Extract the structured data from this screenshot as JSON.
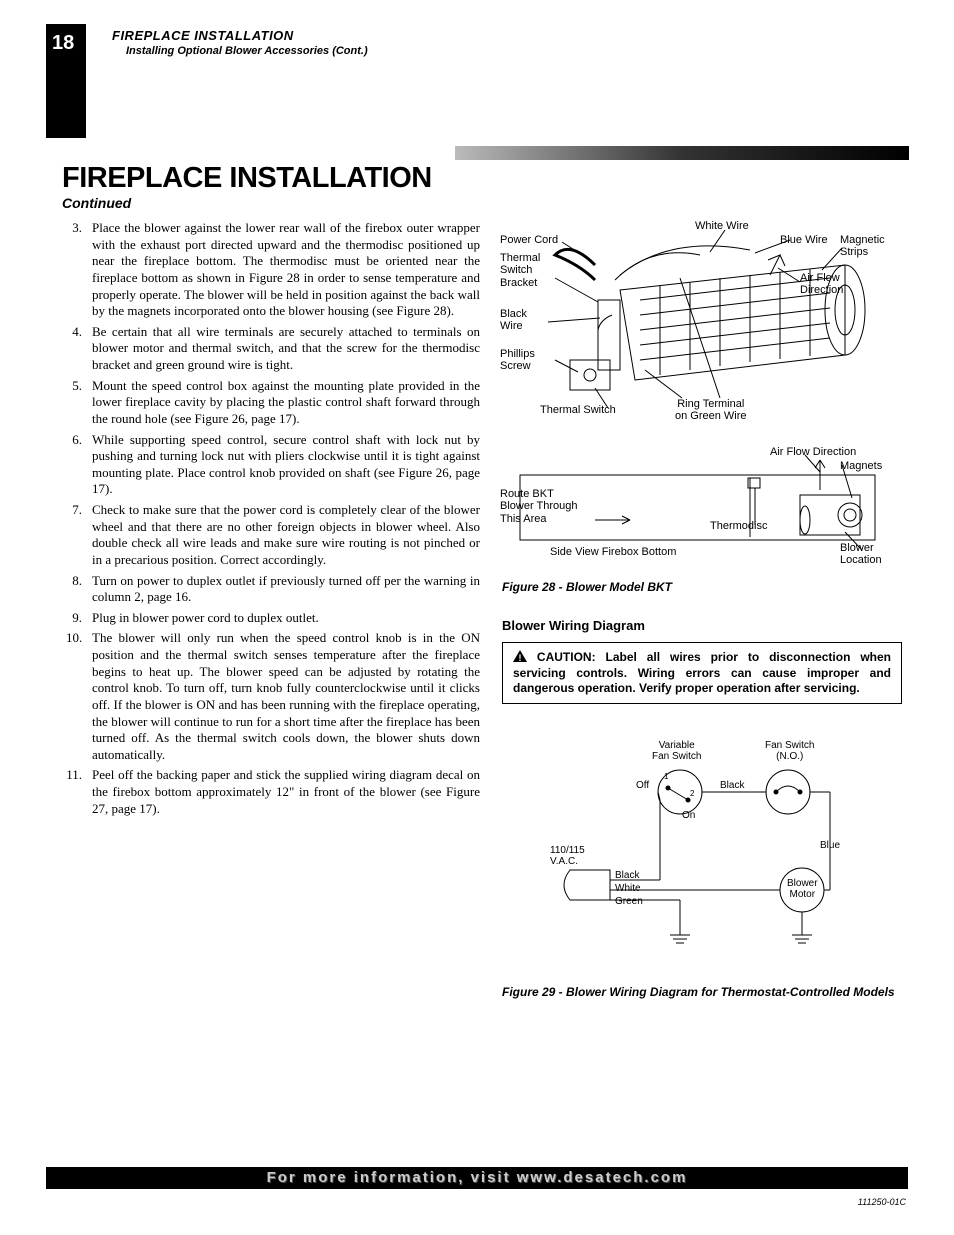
{
  "page_number": "18",
  "header": {
    "line1": "FIREPLACE INSTALLATION",
    "line2": "Installing Optional Blower Accessories (Cont.)"
  },
  "title": "FIREPLACE INSTALLATION",
  "subtitle": "Continued",
  "steps": [
    {
      "n": "3.",
      "text": "Place the blower against the lower rear wall of the firebox outer wrapper with the exhaust port directed upward and the thermodisc positioned up near the fireplace bottom. The thermodisc must be oriented near the fireplace bottom as shown in Figure 28 in order to sense temperature and properly operate. The blower will be held in position against the back wall by the magnets incorporated onto the blower housing (see Figure 28)."
    },
    {
      "n": "4.",
      "text": "Be certain that all wire terminals are securely attached to terminals on blower motor and thermal switch, and that the screw for the thermodisc bracket and green ground wire is tight."
    },
    {
      "n": "5.",
      "text": "Mount the speed control box against the mounting plate provided in the lower fireplace cavity by placing the plastic control shaft forward through the round hole (see Figure 26, page 17)."
    },
    {
      "n": "6.",
      "text": "While supporting speed control, secure control shaft with lock nut by pushing and turning lock nut with pliers clockwise until it is tight against mounting plate. Place control knob provided on shaft (see Figure 26, page 17)."
    },
    {
      "n": "7.",
      "text": "Check to make sure that the power cord is completely clear of the blower wheel and that there are no other foreign objects in blower wheel. Also double check all wire leads and make sure wire routing is not pinched or in a precarious position. Correct accordingly."
    },
    {
      "n": "8.",
      "text": "Turn on power to duplex outlet if previously turned off per the warning in column 2, page 16."
    },
    {
      "n": "9.",
      "text": "Plug in blower power cord to duplex outlet."
    },
    {
      "n": "10.",
      "text": "The blower will only run when the speed control knob is in the ON position and the thermal switch senses temperature after the fireplace begins to heat up. The blower speed can be adjusted by rotating the control knob. To turn off, turn knob fully counterclockwise until it clicks off. If the blower is ON and has been running with the fireplace operating, the blower will continue to run for a short time after the fireplace has been turned off. As the thermal switch cools down, the blower shuts down automatically."
    },
    {
      "n": "11.",
      "text": "Peel off the backing paper and stick the supplied wiring diagram decal on the firebox bottom approximately 12\" in front of the blower (see Figure 27, page 17)."
    }
  ],
  "fig28": {
    "labels": {
      "power_cord": "Power Cord",
      "thermal_switch_bracket": "Thermal\nSwitch\nBracket",
      "black_wire": "Black\nWire",
      "phillips_screw": "Phillips\nScrew",
      "thermal_switch": "Thermal Switch",
      "white_wire": "White Wire",
      "blue_wire": "Blue Wire",
      "magnetic_strips": "Magnetic\nStrips",
      "air_flow_direction": "Air Flow\nDirection",
      "ring_terminal": "Ring Terminal\non Green Wire",
      "air_flow_direction2": "Air Flow Direction",
      "magnets": "Magnets",
      "route": "Route BKT\nBlower Through\nThis Area",
      "thermodisc": "Thermodisc",
      "side_view": "Side View Firebox Bottom",
      "blower_location": "Blower\nLocation"
    },
    "caption": "Figure 28 - Blower Model BKT",
    "stroke": "#000000",
    "fill": "#ffffff"
  },
  "section2_title": "Blower Wiring Diagram",
  "caution": {
    "label": "CAUTION:",
    "text": " Label all wires prior to disconnection when servicing controls. Wiring errors can cause improper and dangerous operation. Verify proper operation after servicing."
  },
  "fig29": {
    "labels": {
      "variable": "Variable\nFan Switch",
      "fan_switch": "Fan Switch\n(N.O.)",
      "off": "Off",
      "on": "On",
      "one": "1",
      "two": "2",
      "black": "Black",
      "black2": "Black",
      "blue": "Blue",
      "vac": "110/115\nV.A.C.",
      "white": "White",
      "green": "Green",
      "blower_motor": "Blower\nMotor"
    },
    "caption": "Figure 29 - Blower Wiring Diagram for Thermostat-Controlled Models",
    "stroke": "#000000"
  },
  "footer": "For more information, visit www.desatech.com",
  "docid": "111250-01C"
}
